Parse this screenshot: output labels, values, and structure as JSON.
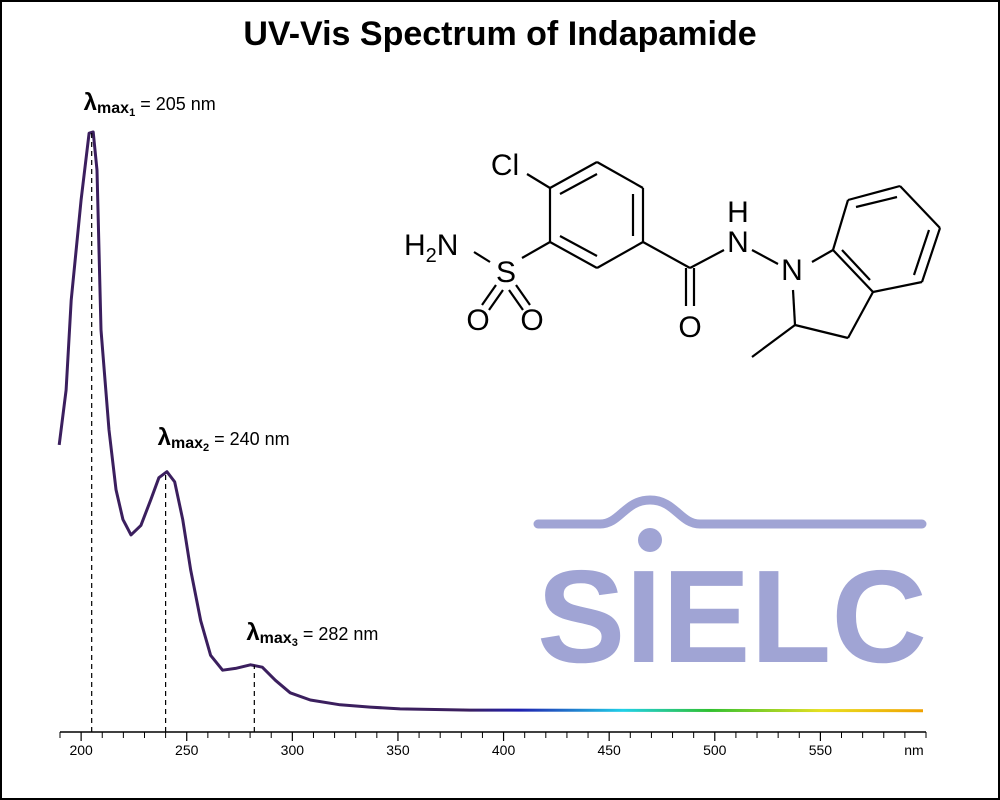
{
  "chart_data": {
    "type": "line",
    "title": "UV-Vis Spectrum of Indapamide",
    "x_label": "nm",
    "xlim": [
      190,
      600
    ],
    "ylim": [
      0,
      1
    ],
    "xticks": [
      200,
      250,
      300,
      350,
      400,
      450,
      500,
      550
    ],
    "xticks_minor": [
      190,
      210,
      220,
      230,
      240,
      260,
      270,
      280,
      290,
      310,
      320,
      330,
      340,
      360,
      370,
      380,
      390,
      410,
      420,
      430,
      440,
      460,
      470,
      480,
      490,
      510,
      520,
      530,
      540,
      560,
      570,
      580,
      590,
      600
    ],
    "series": [
      {
        "name": "Indapamide",
        "color": "#3b1f5e",
        "x": [
          189.6,
          192.9,
          195.3,
          200,
          203.8,
          205.7,
          207.5,
          209.4,
          213.2,
          216.5,
          219.8,
          223.6,
          228.3,
          233,
          236.8,
          240.6,
          244.3,
          248.1,
          251.9,
          256.6,
          261.3,
          267,
          273.1,
          280.2,
          285.8,
          292,
          299,
          308.5,
          322.6,
          336.8,
          351,
          384,
          598.6
        ],
        "values": [
          0.475,
          0.567,
          0.718,
          0.886,
          0.998,
          1.0,
          0.936,
          0.668,
          0.5,
          0.4,
          0.35,
          0.324,
          0.34,
          0.383,
          0.42,
          0.43,
          0.413,
          0.35,
          0.265,
          0.18,
          0.122,
          0.097,
          0.1,
          0.106,
          0.102,
          0.08,
          0.059,
          0.047,
          0.039,
          0.035,
          0.032,
          0.03,
          0.029
        ]
      }
    ],
    "annotations": [
      {
        "symbol": "λ",
        "sub": "max",
        "index": "1",
        "text": " = 205 nm",
        "x": 205
      },
      {
        "symbol": "λ",
        "sub": "max",
        "index": "2",
        "text": " = 240 nm",
        "x": 240
      },
      {
        "symbol": "λ",
        "sub": "max",
        "index": "3",
        "text": " = 282 nm",
        "x": 282
      }
    ]
  },
  "structure": {
    "labels": [
      "Cl",
      "H",
      "N",
      "S",
      "O",
      "O",
      "H",
      "N",
      "O",
      "N"
    ],
    "h2_sub": "2"
  },
  "logo": "SIELC"
}
